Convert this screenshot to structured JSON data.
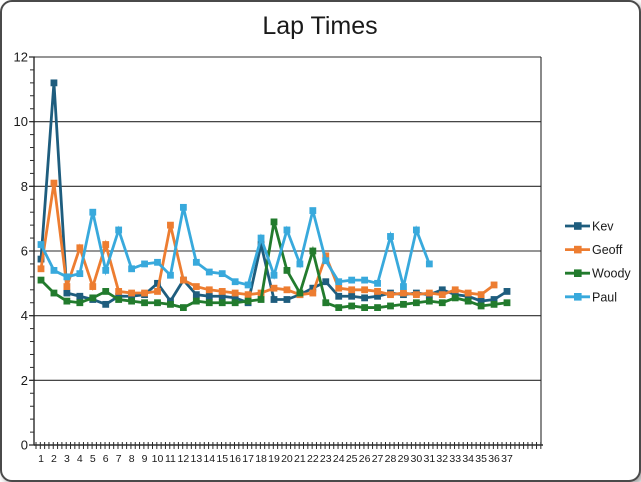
{
  "title": "Lap Times",
  "chart_data": {
    "type": "line",
    "title": "Lap Times",
    "xlabel": "",
    "ylabel": "",
    "ylim": [
      0,
      12
    ],
    "y_ticks": [
      0,
      2,
      4,
      6,
      8,
      10,
      12
    ],
    "y_minor_unit": 0.4,
    "grid": "horizontal",
    "legend_position": "right",
    "marker": "square",
    "categories": [
      1,
      2,
      3,
      4,
      5,
      6,
      7,
      8,
      9,
      10,
      11,
      12,
      13,
      14,
      15,
      16,
      17,
      18,
      19,
      20,
      21,
      22,
      23,
      24,
      25,
      26,
      27,
      28,
      29,
      30,
      31,
      32,
      33,
      34,
      35,
      36,
      37
    ],
    "series": [
      {
        "name": "Kev",
        "color": "#1E5D7E",
        "values": [
          5.75,
          11.2,
          4.7,
          4.6,
          4.5,
          4.35,
          4.6,
          4.6,
          4.65,
          5.0,
          4.45,
          5.1,
          4.65,
          4.6,
          4.6,
          4.55,
          4.4,
          6.2,
          4.5,
          4.5,
          4.65,
          4.85,
          5.05,
          4.6,
          4.6,
          4.55,
          4.6,
          4.7,
          4.65,
          4.7,
          4.65,
          4.8,
          4.65,
          4.6,
          4.45,
          4.5,
          4.75
        ]
      },
      {
        "name": "Geoff",
        "color": "#ED7D31",
        "values": [
          5.45,
          8.1,
          4.9,
          6.1,
          4.9,
          6.2,
          4.75,
          4.7,
          4.7,
          4.75,
          6.8,
          5.1,
          4.9,
          4.8,
          4.75,
          4.7,
          4.65,
          4.7,
          4.85,
          4.8,
          4.65,
          4.7,
          5.85,
          4.85,
          4.8,
          4.8,
          4.75,
          4.65,
          4.7,
          4.65,
          4.7,
          4.65,
          4.8,
          4.7,
          4.65,
          4.95
        ]
      },
      {
        "name": "Woody",
        "color": "#227B2D",
        "values": [
          5.1,
          4.7,
          4.45,
          4.4,
          4.55,
          4.75,
          4.5,
          4.45,
          4.4,
          4.4,
          4.35,
          4.25,
          4.45,
          4.4,
          4.4,
          4.4,
          4.45,
          4.5,
          6.9,
          5.4,
          4.7,
          6.0,
          4.4,
          4.25,
          4.3,
          4.25,
          4.25,
          4.3,
          4.35,
          4.4,
          4.45,
          4.4,
          4.55,
          4.45,
          4.3,
          4.35,
          4.4
        ]
      },
      {
        "name": "Paul",
        "color": "#38A9DC",
        "values": [
          6.2,
          5.4,
          5.2,
          5.3,
          7.2,
          5.4,
          6.65,
          5.45,
          5.6,
          5.65,
          5.25,
          7.35,
          5.65,
          5.35,
          5.3,
          5.05,
          4.95,
          6.4,
          5.25,
          6.65,
          5.6,
          7.25,
          5.7,
          5.05,
          5.1,
          5.1,
          5.0,
          6.45,
          4.9,
          6.65,
          5.6
        ]
      }
    ],
    "frame_color": "#2b2b2b",
    "gridline_color": "#2b2b2b"
  }
}
